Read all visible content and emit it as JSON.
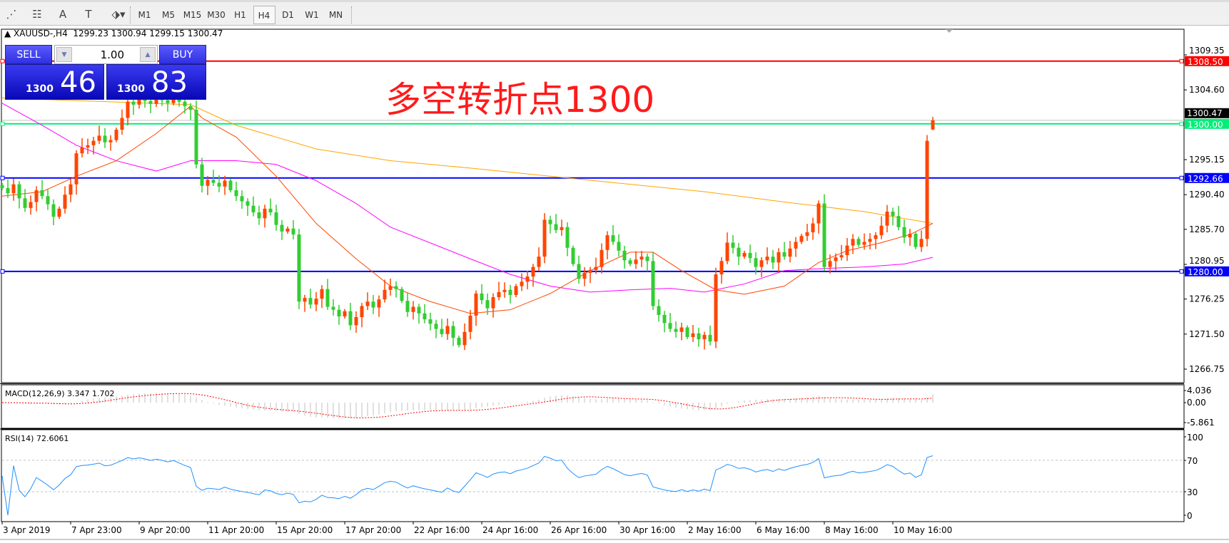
{
  "toolbar": {
    "tools": [
      {
        "icon": "fibonacci-expansion-icon",
        "glyph": "⋰"
      },
      {
        "icon": "fibonacci-fan-icon",
        "glyph": "☷"
      },
      {
        "icon": "text-icon",
        "glyph": "A"
      },
      {
        "icon": "text-label-icon",
        "glyph": "T"
      },
      {
        "icon": "arrows-dropdown-icon",
        "glyph": "⬗▾"
      }
    ],
    "timeframes": [
      "M1",
      "M5",
      "M15",
      "M30",
      "H1",
      "H4",
      "D1",
      "W1",
      "MN"
    ],
    "selected_timeframe": "H4"
  },
  "header": {
    "symbol": "XAUUSD-,H4",
    "open": "1299.23",
    "high": "1300.94",
    "low": "1299.15",
    "close": "1300.47"
  },
  "trade_panel": {
    "sell_label": "SELL",
    "buy_label": "BUY",
    "lot": "1.00",
    "sell_prefix": "1300",
    "sell_suffix": "46",
    "buy_prefix": "1300",
    "buy_suffix": "83"
  },
  "annotation": "多空转折点1300",
  "chart_data": {
    "type": "candlestick",
    "colors": {
      "up": "#ff4500",
      "down": "#32cd32",
      "ma_fast": "#ff4500",
      "ma_mid": "#ff00ff",
      "ma_slow": "#ffa500",
      "rsi": "#1e90ff",
      "macd_signal": "#ff0000",
      "macd_hist": "#c0c0c0"
    },
    "price_ticks": [
      "1309.35",
      "1304.60",
      "1295.15",
      "1290.40",
      "1285.70",
      "1280.95",
      "1276.25",
      "1271.50",
      "1266.75"
    ],
    "ylim": [
      1266.75,
      1309.35
    ],
    "bid_label": "1300.47",
    "bid": 1300.47,
    "hlines": [
      {
        "value": 1308.5,
        "label": "1308.50",
        "color": "#ff0000"
      },
      {
        "value": 1300.0,
        "label": "1300.00",
        "color": "#00ee77"
      },
      {
        "value": 1292.66,
        "label": "1292.66",
        "color": "#0000ff"
      },
      {
        "value": 1280.0,
        "label": "1280.00",
        "color": "#0000ff"
      }
    ],
    "x_labels": [
      "3 Apr 2019",
      "7 Apr 23:00",
      "9 Apr 20:00",
      "11 Apr 20:00",
      "15 Apr 20:00",
      "17 Apr 20:00",
      "22 Apr 16:00",
      "24 Apr 16:00",
      "26 Apr 16:00",
      "30 Apr 16:00",
      "2 May 16:00",
      "6 May 16:00",
      "8 May 16:00",
      "10 May 16:00"
    ],
    "x_label_bars": [
      0,
      12,
      24,
      36,
      48,
      60,
      72,
      84,
      96,
      108,
      120,
      132,
      144,
      156
    ],
    "close": [
      1291.3,
      1290.6,
      1291.8,
      1289.9,
      1288.6,
      1289.4,
      1291.0,
      1290.2,
      1289.1,
      1287.4,
      1288.5,
      1290.4,
      1291.8,
      1296.0,
      1296.8,
      1297.1,
      1297.7,
      1298.4,
      1297.5,
      1297.8,
      1299.2,
      1300.8,
      1303.0,
      1302.6,
      1303.4,
      1303.1,
      1302.7,
      1303.5,
      1303.2,
      1302.8,
      1303.6,
      1303.0,
      1302.4,
      1301.9,
      1294.5,
      1291.6,
      1292.4,
      1292.0,
      1291.5,
      1292.3,
      1291.0,
      1290.2,
      1289.5,
      1288.9,
      1288.0,
      1287.2,
      1288.5,
      1288.0,
      1286.3,
      1285.4,
      1285.8,
      1285.0,
      1275.9,
      1276.4,
      1275.5,
      1276.3,
      1277.6,
      1275.2,
      1274.8,
      1273.9,
      1274.6,
      1272.7,
      1273.8,
      1275.3,
      1275.9,
      1275.1,
      1276.2,
      1277.5,
      1278.0,
      1277.6,
      1276.0,
      1274.5,
      1275.2,
      1274.3,
      1273.5,
      1272.9,
      1272.2,
      1271.5,
      1272.6,
      1271.0,
      1270.0,
      1271.8,
      1274.0,
      1277.0,
      1276.1,
      1275.0,
      1276.5,
      1277.2,
      1277.5,
      1276.8,
      1278.0,
      1278.6,
      1279.3,
      1280.6,
      1282.0,
      1287.0,
      1286.4,
      1285.6,
      1286.0,
      1283.2,
      1281.0,
      1279.0,
      1279.8,
      1280.2,
      1280.6,
      1282.9,
      1284.9,
      1284.0,
      1282.8,
      1281.5,
      1281.0,
      1281.6,
      1282.0,
      1281.4,
      1275.3,
      1274.1,
      1273.0,
      1272.2,
      1271.8,
      1272.4,
      1271.1,
      1271.6,
      1270.8,
      1271.4,
      1270.5,
      1279.6,
      1281.4,
      1283.9,
      1283.2,
      1282.0,
      1282.5,
      1281.8,
      1280.6,
      1281.5,
      1282.0,
      1281.2,
      1282.6,
      1282.0,
      1283.1,
      1284.0,
      1284.8,
      1285.3,
      1286.5,
      1289.2,
      1280.6,
      1281.4,
      1281.9,
      1282.2,
      1283.5,
      1284.4,
      1283.6,
      1284.0,
      1284.4,
      1284.9,
      1286.2,
      1288.1,
      1287.5,
      1286.0,
      1284.6,
      1285.1,
      1283.3,
      1284.4,
      1297.7,
      1300.47
    ],
    "moving_averages": [
      {
        "key": "ma_slow",
        "points": [
          [
            0,
            1303.5
          ],
          [
            33,
            1302.6
          ],
          [
            41,
            1299.8
          ],
          [
            55,
            1296.6
          ],
          [
            68,
            1295
          ],
          [
            82,
            1294
          ],
          [
            96,
            1292.9
          ],
          [
            110,
            1291.8
          ],
          [
            123,
            1290.8
          ],
          [
            137,
            1289.4
          ],
          [
            151,
            1288.1
          ],
          [
            163,
            1286.5
          ]
        ]
      },
      {
        "key": "ma_mid",
        "points": [
          [
            0,
            1302.8
          ],
          [
            7,
            1299.8
          ],
          [
            13,
            1297.1
          ],
          [
            20,
            1295
          ],
          [
            27,
            1293.6
          ],
          [
            33,
            1295
          ],
          [
            41,
            1295
          ],
          [
            48,
            1294.5
          ],
          [
            55,
            1292.3
          ],
          [
            62,
            1289.2
          ],
          [
            68,
            1286
          ],
          [
            82,
            1281.7
          ],
          [
            89,
            1279.6
          ],
          [
            96,
            1278
          ],
          [
            103,
            1277.2
          ],
          [
            110,
            1277.5
          ],
          [
            117,
            1277.7
          ],
          [
            123,
            1277.2
          ],
          [
            130,
            1278.3
          ],
          [
            137,
            1280.1
          ],
          [
            144,
            1280.4
          ],
          [
            151,
            1280.6
          ],
          [
            158,
            1281
          ],
          [
            163,
            1281.9
          ]
        ]
      },
      {
        "key": "ma_fast",
        "points": [
          [
            0,
            1290.2
          ],
          [
            7,
            1290.8
          ],
          [
            13,
            1292.9
          ],
          [
            20,
            1295
          ],
          [
            27,
            1298.7
          ],
          [
            33,
            1302.4
          ],
          [
            35,
            1300.8
          ],
          [
            41,
            1298.2
          ],
          [
            48,
            1292.9
          ],
          [
            55,
            1286.5
          ],
          [
            62,
            1281.7
          ],
          [
            68,
            1278
          ],
          [
            75,
            1275.9
          ],
          [
            82,
            1274.3
          ],
          [
            89,
            1274.8
          ],
          [
            96,
            1277
          ],
          [
            103,
            1280.1
          ],
          [
            110,
            1282.6
          ],
          [
            114,
            1282.6
          ],
          [
            119,
            1280.1
          ],
          [
            125,
            1277.5
          ],
          [
            130,
            1276.9
          ],
          [
            137,
            1278
          ],
          [
            143,
            1281.2
          ],
          [
            148,
            1282.8
          ],
          [
            154,
            1283.9
          ],
          [
            159,
            1285
          ],
          [
            163,
            1286.5
          ]
        ]
      }
    ],
    "macd": {
      "label": "MACD(12,26,9) 3.347 1.702",
      "ticks": [
        "4.036",
        "0.00",
        "-5.861"
      ],
      "ylim": [
        -5.861,
        4.036
      ]
    },
    "rsi": {
      "label": "RSI(14) 72.6061",
      "ticks": [
        "100",
        "70",
        "30",
        "0"
      ],
      "levels": [
        70,
        30
      ],
      "ylim": [
        0,
        100
      ]
    }
  }
}
